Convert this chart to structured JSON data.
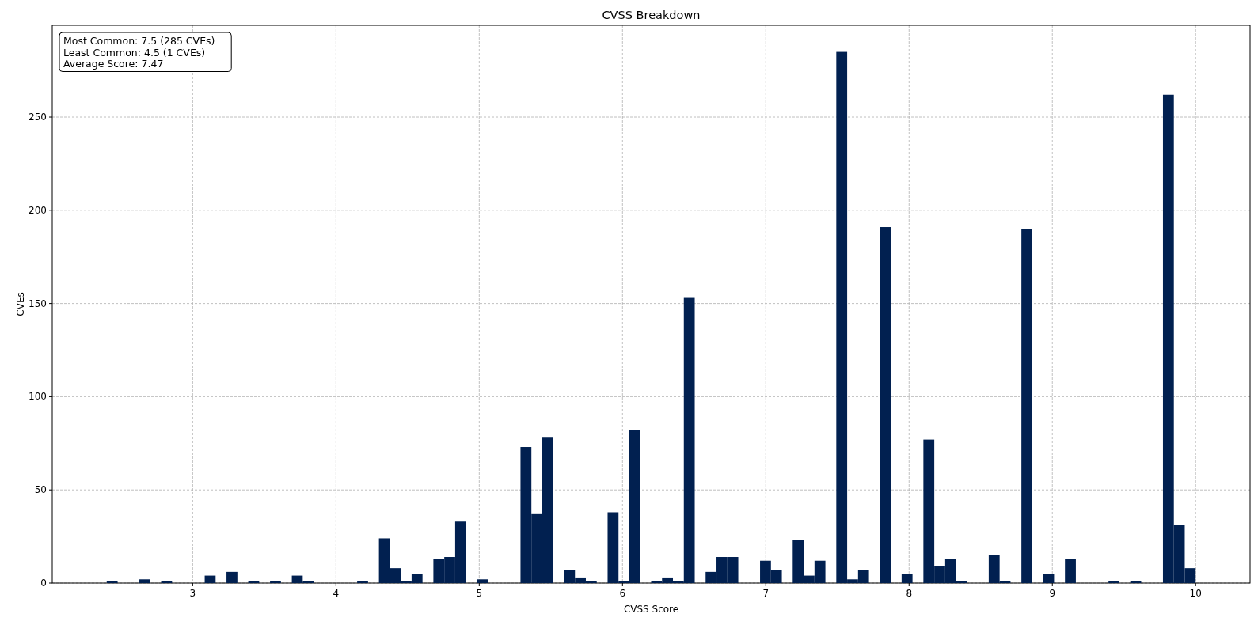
{
  "chart_data": {
    "type": "histogram",
    "title": "CVSS Breakdown",
    "xlabel": "CVSS Score",
    "ylabel": "CVEs",
    "color": "#012050",
    "bins": [
      2.4,
      2.476,
      2.552,
      2.628,
      2.704,
      2.78,
      2.856,
      2.932,
      3.008,
      3.084,
      3.16,
      3.236,
      3.312,
      3.388,
      3.464,
      3.54,
      3.616,
      3.692,
      3.768,
      3.844,
      3.92,
      3.996,
      4.072,
      4.148,
      4.224,
      4.3,
      4.376,
      4.452,
      4.528,
      4.604,
      4.68,
      4.756,
      4.832,
      4.908,
      4.984,
      5.06,
      5.136,
      5.212,
      5.288,
      5.364,
      5.44,
      5.516,
      5.592,
      5.668,
      5.744,
      5.82,
      5.896,
      5.972,
      6.048,
      6.124,
      6.2,
      6.276,
      6.352,
      6.428,
      6.504,
      6.58,
      6.656,
      6.732,
      6.808,
      6.884,
      6.96,
      7.036,
      7.112,
      7.188,
      7.264,
      7.34,
      7.416,
      7.492,
      7.568,
      7.644,
      7.72,
      7.796,
      7.872,
      7.948,
      8.024,
      8.1,
      8.176,
      8.252,
      8.328,
      8.404,
      8.48,
      8.556,
      8.632,
      8.708,
      8.784,
      8.86,
      8.936,
      9.012,
      9.088,
      9.164,
      9.24,
      9.316,
      9.392,
      9.468,
      9.544,
      9.62,
      9.696,
      9.772,
      9.848,
      9.924,
      10
    ],
    "values": [
      1,
      0,
      0,
      2,
      0,
      1,
      0,
      0,
      0,
      4,
      0,
      6,
      0,
      1,
      0,
      1,
      0,
      4,
      1,
      0,
      0,
      0,
      0,
      1,
      0,
      24,
      8,
      1,
      5,
      0,
      13,
      14,
      33,
      0,
      2,
      0,
      0,
      0,
      73,
      37,
      78,
      0,
      7,
      3,
      1,
      0,
      38,
      1,
      82,
      0,
      1,
      3,
      1,
      153,
      0,
      6,
      14,
      14,
      0,
      0,
      12,
      7,
      0,
      23,
      4,
      12,
      0,
      285,
      2,
      7,
      0,
      191,
      0,
      5,
      0,
      77,
      9,
      13,
      1,
      0,
      0,
      15,
      1,
      0,
      190,
      0,
      5,
      0,
      13,
      0,
      0,
      0,
      1,
      0,
      1,
      0,
      0,
      262,
      31,
      8
    ],
    "xlim": [
      2.02,
      10.38
    ],
    "ylim": [
      0,
      299.25
    ],
    "xticks": [
      3,
      4,
      5,
      6,
      7,
      8,
      9,
      10
    ],
    "yticks": [
      0,
      50,
      100,
      150,
      200,
      250
    ],
    "grid": true,
    "annotations": [
      "Most Common: 7.5 (285 CVEs)",
      "Least Common: 4.5 (1 CVEs)",
      "Average Score: 7.47"
    ]
  }
}
